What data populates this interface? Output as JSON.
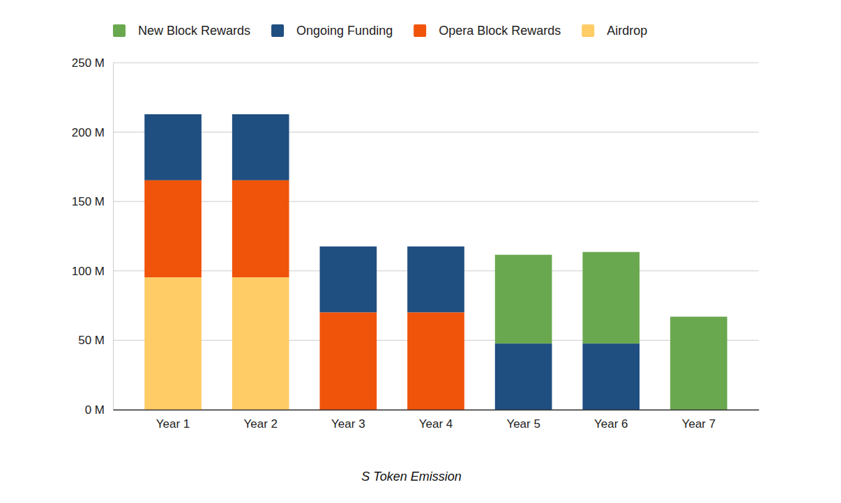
{
  "chart_data": {
    "type": "bar",
    "title": "S Token Emission",
    "stacked": true,
    "grid": true,
    "legend": "top",
    "categories": [
      "Year 1",
      "Year 2",
      "Year 3",
      "Year 4",
      "Year 5",
      "Year 6",
      "Year 7"
    ],
    "series": [
      {
        "name": "New Block Rewards",
        "color": "#6aa84f",
        "values": [
          0,
          0,
          0,
          0,
          64,
          66,
          67
        ]
      },
      {
        "name": "Ongoing Funding",
        "color": "#1f4e80",
        "values": [
          47.6,
          47.6,
          47.6,
          47.6,
          47.6,
          47.6,
          0
        ]
      },
      {
        "name": "Opera Block Rewards",
        "color": "#f0540a",
        "values": [
          70,
          70,
          70,
          70,
          0,
          0,
          0
        ]
      },
      {
        "name": "Airdrop",
        "color": "#ffcc66",
        "values": [
          95.25,
          95.25,
          0,
          0,
          0,
          0,
          0
        ]
      }
    ],
    "ylim": [
      0,
      250
    ],
    "yticks": [
      {
        "value": 0,
        "label": "0 M"
      },
      {
        "value": 50,
        "label": "50 M"
      },
      {
        "value": 100,
        "label": "100 M"
      },
      {
        "value": 150,
        "label": "150 M"
      },
      {
        "value": 200,
        "label": "200 M"
      },
      {
        "value": 250,
        "label": "250 M"
      }
    ]
  }
}
